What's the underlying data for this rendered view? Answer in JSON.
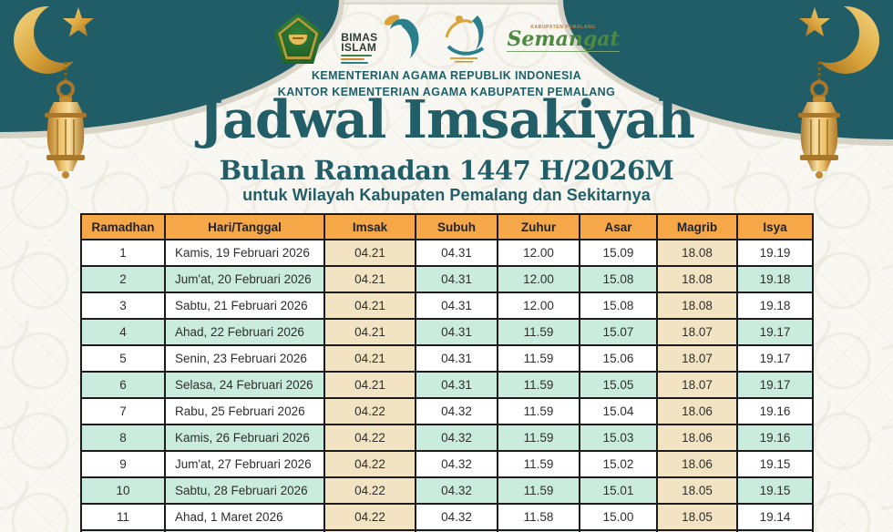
{
  "poster": {
    "org_line1": "KEMENTERIAN AGAMA REPUBLIK INDONESIA",
    "org_line2": "KANTOR KEMENTERIAN AGAMA KABUPATEN PEMALANG",
    "title": "Jadwal Imsakiyah",
    "subtitle": "Bulan Ramadan 1447 H/2026M",
    "tagline": "untuk Wilayah Kabupaten Pemalang dan Sekitarnya"
  },
  "logos": {
    "bimas_line1": "BIMAS",
    "bimas_line2": "ISLAM",
    "semangat_micro": "KABUPATEN PEMALANG",
    "semangat_text": "Semangat"
  },
  "colors": {
    "teal_dark": "#215d67",
    "header_orange": "#f6a848",
    "row_mint": "#c9ecdf",
    "cell_tan": "#f2e4c3",
    "gold": "#d9a33a",
    "border_black": "#1b1b1b"
  },
  "table": {
    "headers": [
      "Ramadhan",
      "Hari/Tanggal",
      "Imsak",
      "Subuh",
      "Zuhur",
      "Asar",
      "Magrib",
      "Isya"
    ],
    "rows": [
      [
        "1",
        "Kamis, 19 Februari 2026",
        "04.21",
        "04.31",
        "12.00",
        "15.09",
        "18.08",
        "19.19"
      ],
      [
        "2",
        "Jum'at, 20 Februari 2026",
        "04.21",
        "04.31",
        "12.00",
        "15.08",
        "18.08",
        "19.18"
      ],
      [
        "3",
        "Sabtu, 21 Februari 2026",
        "04.21",
        "04.31",
        "12.00",
        "15.08",
        "18.08",
        "19.18"
      ],
      [
        "4",
        "Ahad, 22 Februari 2026",
        "04.21",
        "04.31",
        "11.59",
        "15.07",
        "18.07",
        "19.17"
      ],
      [
        "5",
        "Senin, 23 Februari 2026",
        "04.21",
        "04.31",
        "11.59",
        "15.06",
        "18.07",
        "19.17"
      ],
      [
        "6",
        "Selasa, 24 Februari 2026",
        "04.21",
        "04.31",
        "11.59",
        "15.05",
        "18.07",
        "19.17"
      ],
      [
        "7",
        "Rabu, 25 Februari 2026",
        "04.22",
        "04.32",
        "11.59",
        "15.04",
        "18.06",
        "19.16"
      ],
      [
        "8",
        "Kamis, 26 Februari 2026",
        "04.22",
        "04.32",
        "11.59",
        "15.03",
        "18.06",
        "19.16"
      ],
      [
        "9",
        "Jum'at, 27 Februari 2026",
        "04.22",
        "04.32",
        "11.59",
        "15.02",
        "18.06",
        "19.15"
      ],
      [
        "10",
        "Sabtu, 28 Februari 2026",
        "04.22",
        "04.32",
        "11.59",
        "15.01",
        "18.05",
        "19.15"
      ],
      [
        "11",
        "Ahad, 1 Maret 2026",
        "04.22",
        "04.32",
        "11.58",
        "15.00",
        "18.05",
        "19.14"
      ]
    ],
    "partial_next_row_visible": true
  }
}
